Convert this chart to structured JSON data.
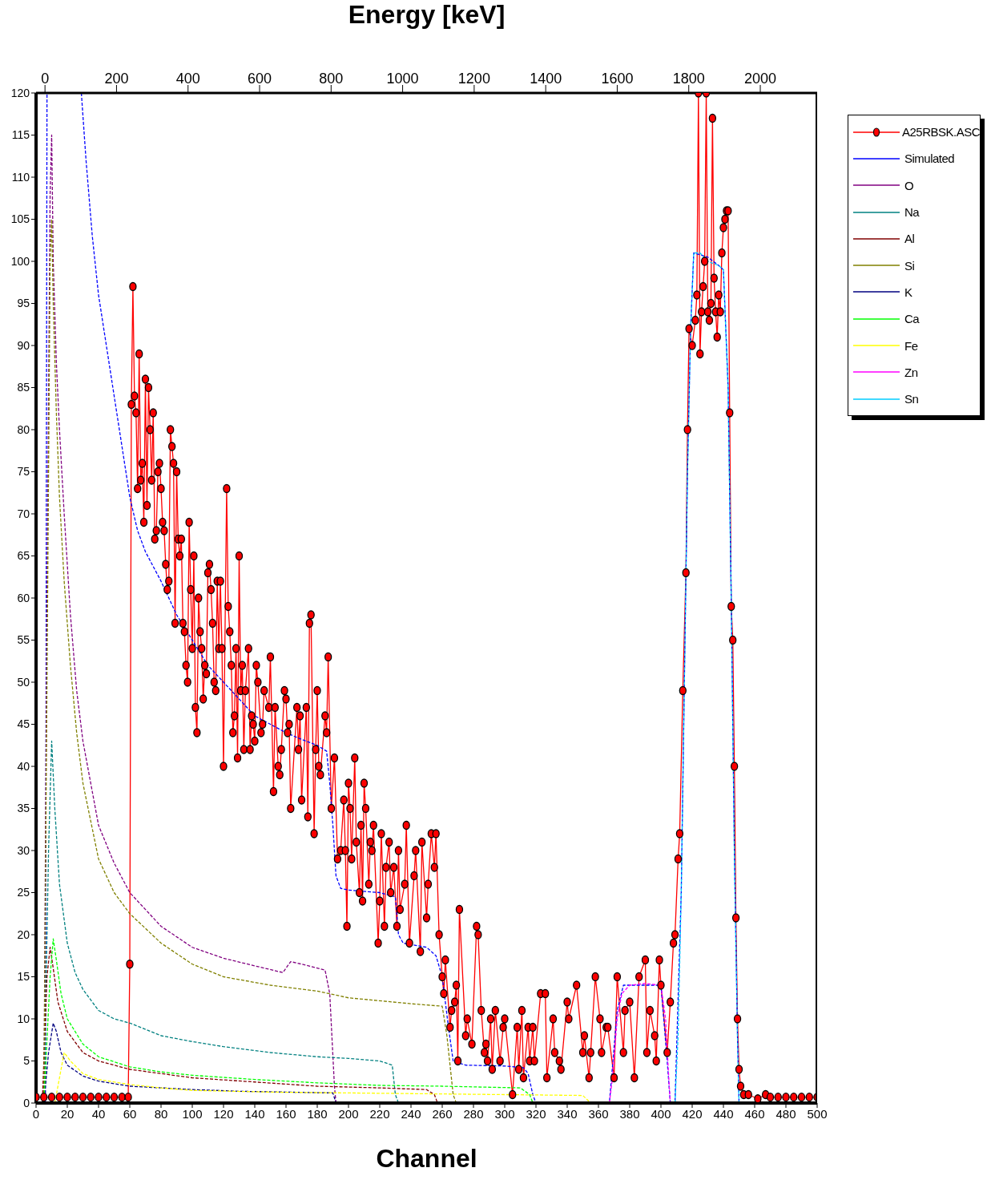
{
  "chart_data": {
    "type": "line",
    "x2label": "Energy [keV]",
    "xlabel": "Channel",
    "xlim": [
      0,
      500
    ],
    "xticks": [
      0,
      20,
      40,
      60,
      80,
      100,
      120,
      140,
      160,
      180,
      200,
      220,
      240,
      260,
      280,
      300,
      320,
      340,
      360,
      380,
      400,
      420,
      440,
      460,
      480,
      500
    ],
    "x2lim": [
      -25,
      2159
    ],
    "x2ticks": [
      0,
      200,
      400,
      600,
      800,
      1000,
      1200,
      1400,
      1600,
      1800,
      2000
    ],
    "ylim": [
      0,
      120
    ],
    "yticks": [
      0,
      5,
      10,
      15,
      20,
      25,
      30,
      35,
      40,
      45,
      50,
      55,
      60,
      65,
      70,
      75,
      80,
      85,
      90,
      95,
      100,
      105,
      110,
      115,
      120
    ],
    "legend": "right",
    "series": [
      {
        "name": "A25RBSK.ASC",
        "color": "#ff0000",
        "marker": "circle",
        "line_style": "solid",
        "x": [
          0,
          5,
          10,
          15,
          20,
          25,
          30,
          35,
          40,
          45,
          50,
          55,
          59,
          60,
          61,
          62,
          63,
          64,
          65,
          66,
          67,
          68,
          69,
          70,
          71,
          72,
          73,
          74,
          75,
          76,
          77,
          78,
          79,
          80,
          81,
          82,
          83,
          84,
          85,
          86,
          87,
          88,
          89,
          90,
          91,
          92,
          93,
          94,
          95,
          96,
          97,
          98,
          99,
          100,
          101,
          102,
          103,
          104,
          105,
          106,
          107,
          108,
          109,
          110,
          111,
          112,
          113,
          114,
          115,
          116,
          117,
          118,
          119,
          120,
          122,
          123,
          124,
          125,
          126,
          127,
          128,
          129,
          130,
          131,
          132,
          133,
          134,
          136,
          137,
          138,
          139,
          140,
          141,
          142,
          144,
          145,
          146,
          149,
          150,
          152,
          153,
          155,
          156,
          157,
          159,
          160,
          161,
          162,
          163,
          167,
          168,
          169,
          170,
          173,
          174,
          175,
          176,
          178,
          179,
          180,
          181,
          182,
          185,
          186,
          187,
          189,
          191,
          193,
          195,
          197,
          198,
          199,
          200,
          201,
          202,
          204,
          205,
          207,
          208,
          209,
          210,
          211,
          213,
          214,
          215,
          216,
          219,
          220,
          221,
          223,
          224,
          226,
          227,
          229,
          231,
          232,
          233,
          236,
          237,
          239,
          242,
          243,
          246,
          247,
          250,
          251,
          253,
          255,
          256,
          258,
          260,
          261,
          262,
          265,
          266,
          268,
          269,
          270,
          271,
          275,
          276,
          279,
          282,
          283,
          285,
          287,
          288,
          289,
          291,
          292,
          294,
          297,
          299,
          300,
          305,
          308,
          309,
          311,
          312,
          315,
          316,
          318,
          319,
          323,
          326,
          327,
          331,
          332,
          335,
          336,
          340,
          341,
          346,
          350,
          351,
          354,
          355,
          358,
          361,
          362,
          365,
          366,
          370,
          372,
          376,
          377,
          380,
          383,
          386,
          390,
          391,
          393,
          396,
          397,
          399,
          400,
          404,
          406,
          408,
          409,
          411,
          412,
          414,
          416,
          417,
          418,
          420,
          422,
          423,
          424,
          425,
          426,
          427,
          428,
          429,
          430,
          431,
          432,
          433,
          434,
          435,
          436,
          437,
          438,
          439,
          440,
          441,
          442,
          443,
          444,
          445,
          446,
          447,
          448,
          449,
          450,
          451,
          453,
          456,
          462,
          467,
          470,
          475,
          480,
          485,
          490,
          495,
          500
        ],
        "values": [
          0.7,
          0.7,
          0.7,
          0.7,
          0.7,
          0.7,
          0.7,
          0.7,
          0.7,
          0.7,
          0.7,
          0.7,
          0.7,
          16.5,
          83,
          97,
          84,
          82,
          73,
          89,
          74,
          76,
          69,
          86,
          71,
          85,
          80,
          74,
          82,
          67,
          68,
          75,
          76,
          73,
          69,
          68,
          64,
          61,
          62,
          80,
          78,
          76,
          57,
          75,
          67,
          65,
          67,
          57,
          56,
          52,
          50,
          69,
          61,
          54,
          65,
          47,
          44,
          60,
          56,
          54,
          48,
          52,
          51,
          63,
          64,
          61,
          57,
          50,
          49,
          62,
          54,
          62,
          54,
          40,
          73,
          59,
          56,
          52,
          44,
          46,
          54,
          41,
          65,
          49,
          52,
          42,
          49,
          54,
          42,
          46,
          45,
          43,
          52,
          50,
          44,
          45,
          49,
          47,
          53,
          37,
          47,
          40,
          39,
          42,
          49,
          48,
          44,
          45,
          35,
          47,
          42,
          46,
          36,
          47,
          34,
          57,
          58,
          32,
          42,
          49,
          40,
          39,
          46,
          44,
          53,
          35,
          41,
          29,
          30,
          36,
          30,
          21,
          38,
          35,
          29,
          41,
          31,
          25,
          33,
          24,
          38,
          35,
          26,
          31,
          30,
          33,
          19,
          24,
          32,
          21,
          28,
          31,
          25,
          28,
          21,
          30,
          23,
          26,
          33,
          19,
          27,
          30,
          18,
          31,
          22,
          26,
          32,
          28,
          32,
          20,
          15,
          13,
          17,
          9,
          11,
          12,
          14,
          5,
          23,
          8,
          10,
          7,
          21,
          20,
          11,
          6,
          7,
          5,
          10,
          4,
          11,
          5,
          9,
          10,
          1,
          9,
          4,
          11,
          3,
          9,
          5,
          9,
          5,
          13,
          13,
          3,
          10,
          6,
          5,
          4,
          12,
          10,
          14,
          6,
          8,
          3,
          6,
          15,
          10,
          6,
          9,
          9,
          3,
          15,
          6,
          11,
          12,
          3,
          15,
          17,
          6,
          11,
          8,
          5,
          17,
          14,
          6,
          12,
          19,
          20,
          29,
          32,
          49,
          63,
          80,
          92,
          90,
          93,
          96,
          120,
          89,
          94,
          97,
          100,
          120,
          94,
          93,
          95,
          117,
          98,
          94,
          91,
          96,
          94,
          101,
          104,
          105,
          106,
          106,
          82,
          59,
          55,
          40,
          22,
          10,
          4,
          2,
          1,
          1,
          0.5,
          1,
          0.7,
          0.7,
          0.7,
          0.7,
          0.7,
          0.7,
          0.7
        ]
      },
      {
        "name": "Simulated",
        "color": "#0000ff",
        "marker": "none",
        "line_style": "dashed",
        "x": [
          6,
          7,
          7.5,
          29,
          32,
          36,
          40,
          45,
          50,
          55,
          60,
          65,
          70,
          80,
          90,
          100,
          110,
          120,
          130,
          140,
          150,
          160,
          170,
          180,
          186,
          188,
          190,
          192,
          195,
          200,
          220,
          230,
          232,
          235,
          250,
          256,
          260,
          264,
          267,
          275,
          300,
          312,
          315,
          318,
          320,
          367,
          372,
          376,
          385,
          400,
          404,
          406,
          409,
          413,
          415,
          417,
          419,
          421,
          430,
          437,
          440,
          443,
          445,
          447,
          449,
          450,
          500
        ],
        "values": [
          0,
          120,
          null,
          120,
          112,
          103,
          96,
          90,
          84,
          78,
          72,
          68,
          65.5,
          62,
          58,
          55,
          52,
          50,
          48,
          46,
          45,
          44,
          43.2,
          42.5,
          41.8,
          38,
          33,
          27,
          25.5,
          25.3,
          25,
          24.5,
          20,
          19,
          18.5,
          17.5,
          15,
          9,
          5,
          4.5,
          4.4,
          4.2,
          3.5,
          1,
          0,
          0,
          11,
          14,
          14,
          14,
          5,
          0,
          0,
          25,
          50,
          75,
          92,
          101,
          100.5,
          99.5,
          99,
          85,
          60,
          30,
          8,
          0,
          0
        ]
      },
      {
        "name": "O",
        "color": "#800080",
        "marker": "none",
        "line_style": "dashed",
        "x": [
          5,
          7,
          9,
          10,
          11,
          13,
          15,
          18,
          22,
          26,
          30,
          40,
          50,
          60,
          80,
          100,
          120,
          140,
          158,
          163,
          170,
          185,
          188,
          191,
          192
        ],
        "values": [
          0,
          60,
          108,
          115,
          100,
          88,
          80,
          70,
          58,
          49,
          43,
          33,
          28.5,
          25,
          21,
          18.5,
          17.2,
          16.3,
          15.5,
          16.8,
          16.5,
          15.8,
          13,
          2,
          0
        ]
      },
      {
        "name": "Na",
        "color": "#008080",
        "marker": "none",
        "line_style": "dashed",
        "x": [
          5,
          8,
          10,
          12,
          15,
          20,
          25,
          30,
          40,
          50,
          60,
          80,
          100,
          120,
          150,
          180,
          200,
          220,
          228,
          230,
          232
        ],
        "values": [
          0,
          30,
          43,
          35,
          26,
          19,
          15.5,
          13.5,
          11,
          10,
          9.5,
          8,
          7.3,
          6.7,
          6,
          5.5,
          5.3,
          5,
          4.5,
          1,
          0
        ]
      },
      {
        "name": "Al",
        "color": "#800000",
        "marker": "none",
        "line_style": "dashed",
        "x": [
          4,
          7,
          9,
          11,
          14,
          20,
          30,
          40,
          60,
          80,
          100,
          140,
          180,
          220,
          250,
          255,
          257
        ],
        "values": [
          0,
          15,
          18.5,
          16,
          12,
          8.5,
          6,
          5,
          4,
          3.5,
          3,
          2.5,
          2,
          1.8,
          1.6,
          1,
          0
        ]
      },
      {
        "name": "Si",
        "color": "#808000",
        "marker": "none",
        "line_style": "dashed",
        "x": [
          5,
          7,
          9,
          10,
          11,
          13,
          15,
          18,
          22,
          26,
          30,
          40,
          50,
          60,
          80,
          100,
          120,
          150,
          180,
          200,
          240,
          260,
          263,
          267,
          269
        ],
        "values": [
          0,
          50,
          100,
          105,
          95,
          82,
          72,
          62,
          52,
          44,
          38,
          29,
          25,
          22.5,
          19,
          16.5,
          15,
          14,
          13.3,
          12.5,
          11.8,
          11.5,
          8,
          1,
          0
        ]
      },
      {
        "name": "K",
        "color": "#000080",
        "marker": "none",
        "line_style": "dashed",
        "x": [
          5,
          8,
          11,
          13,
          16,
          20,
          30,
          40,
          60,
          80,
          100,
          130,
          160,
          190,
          192
        ],
        "values": [
          0,
          6,
          9.5,
          8.5,
          6,
          4.5,
          3.2,
          2.6,
          2,
          1.8,
          1.6,
          1.4,
          1.3,
          1.2,
          0
        ]
      },
      {
        "name": "Ca",
        "color": "#00ff00",
        "marker": "none",
        "line_style": "dashed",
        "x": [
          5,
          9,
          11,
          13,
          16,
          20,
          30,
          40,
          60,
          80,
          100,
          140,
          180,
          220,
          260,
          310,
          316,
          318
        ],
        "values": [
          0,
          15,
          19.5,
          17,
          13,
          10,
          7,
          5.5,
          4.3,
          3.7,
          3.3,
          2.8,
          2.4,
          2.1,
          2,
          1.8,
          1,
          0
        ]
      },
      {
        "name": "Fe",
        "color": "#ffff00",
        "marker": "none",
        "line_style": "dashed",
        "x": [
          12,
          15,
          18,
          22,
          30,
          40,
          60,
          80,
          100,
          150,
          200,
          250,
          300,
          350,
          355
        ],
        "values": [
          0,
          3,
          6,
          5,
          3.5,
          2.8,
          2.2,
          1.8,
          1.5,
          1.3,
          1.2,
          1.1,
          1,
          0.9,
          0
        ]
      },
      {
        "name": "Zn",
        "color": "#ff00ff",
        "marker": "none",
        "line_style": "dashed",
        "x": [
          367,
          369,
          372,
          375,
          380,
          390,
          400,
          403,
          405,
          406
        ],
        "values": [
          0,
          3,
          10,
          13,
          14,
          14.2,
          14,
          10,
          3,
          0
        ]
      },
      {
        "name": "Sn",
        "color": "#00ccff",
        "marker": "none",
        "line_style": "dashed",
        "x": [
          409,
          411,
          413,
          415,
          417,
          419,
          421,
          425,
          430,
          437,
          440,
          443,
          445,
          447,
          449,
          450
        ],
        "values": [
          0,
          8,
          25,
          50,
          75,
          92,
          101,
          101,
          100,
          99.5,
          99,
          85,
          60,
          30,
          8,
          0
        ]
      }
    ]
  }
}
